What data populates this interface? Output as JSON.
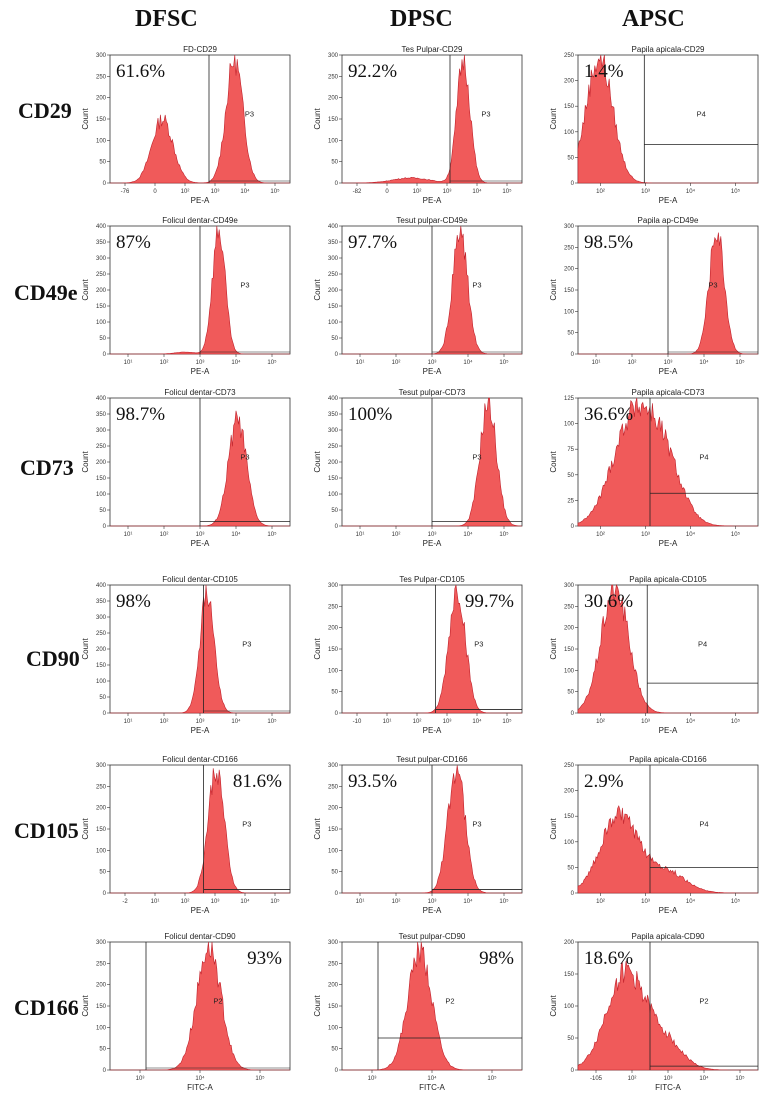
{
  "column_headers": [
    "DFSC",
    "DPSC",
    "APSC"
  ],
  "row_headers": [
    "CD29",
    "CD49e",
    "CD73",
    "CD90",
    "CD105",
    "CD166"
  ],
  "colors": {
    "histogram_fill": "#f05a5a",
    "histogram_stroke": "#c0202a",
    "axis": "#333333"
  },
  "chart_data": [
    {
      "type": "area",
      "title": "FD-CD29",
      "percentage": "61.6%",
      "gate_label": "P3",
      "gate_type": "vertical",
      "gate_x": 2.7,
      "xlabel": "PE-A",
      "ylabel": "Count",
      "ylim": [
        0,
        300
      ],
      "yticks": [
        0,
        50,
        100,
        150,
        200,
        250,
        300
      ],
      "xticks": [
        "-76",
        "0",
        "10²",
        "10³",
        "10⁴",
        "10⁵"
      ],
      "xlim": [
        -0.6,
        5.4
      ],
      "peaks": [
        {
          "mu": 1.15,
          "sigma": 0.35,
          "amp": 150
        },
        {
          "mu": 3.55,
          "sigma": 0.28,
          "amp": 290
        }
      ]
    },
    {
      "type": "area",
      "title": "Tes Pulpar-CD29",
      "percentage": "92.2%",
      "gate_label": "P3",
      "gate_type": "vertical",
      "gate_x": 3.0,
      "xlabel": "PE-A",
      "ylabel": "Count",
      "ylim": [
        0,
        300
      ],
      "yticks": [
        0,
        50,
        100,
        150,
        200,
        250,
        300
      ],
      "xticks": [
        "-82",
        "0",
        "10²",
        "10³",
        "10⁴",
        "10⁵"
      ],
      "xlim": [
        -0.6,
        5.4
      ],
      "peaks": [
        {
          "mu": 1.7,
          "sigma": 0.6,
          "amp": 12
        },
        {
          "mu": 3.45,
          "sigma": 0.22,
          "amp": 290
        }
      ]
    },
    {
      "type": "area",
      "title": "Papila apicala-CD29",
      "percentage": "1.4%",
      "gate_label": "P4",
      "gate_type": "corner",
      "gate_x": 3.0,
      "gate_y": 75,
      "xlabel": "PE-A",
      "ylabel": "Count",
      "ylim": [
        0,
        250
      ],
      "yticks": [
        0,
        50,
        100,
        150,
        200,
        250
      ],
      "xticks": [
        "10²",
        "10³",
        "10⁴",
        "10⁵"
      ],
      "xlim": [
        1.6,
        5.4
      ],
      "peaks": [
        {
          "mu": 2.05,
          "sigma": 0.28,
          "amp": 245
        }
      ]
    },
    {
      "type": "area",
      "title": "Folicul dentar-CD49e",
      "percentage": "87%",
      "gate_label": "P3",
      "gate_type": "vertical",
      "gate_x": 3.0,
      "xlabel": "PE-A",
      "ylabel": "Count",
      "ylim": [
        0,
        400
      ],
      "yticks": [
        0,
        50,
        100,
        150,
        200,
        250,
        300,
        350,
        400
      ],
      "xticks": [
        "10¹",
        "10²",
        "10³",
        "10⁴",
        "10⁵"
      ],
      "xlim": [
        0.6,
        5.4
      ],
      "peaks": [
        {
          "mu": 3.5,
          "sigma": 0.17,
          "amp": 390
        },
        {
          "mu": 2.6,
          "sigma": 0.25,
          "amp": 6
        }
      ]
    },
    {
      "type": "area",
      "title": "Tesut pulpar-CD49e",
      "percentage": "97.7%",
      "gate_label": "P3",
      "gate_type": "vertical",
      "gate_x": 3.0,
      "xlabel": "PE-A",
      "ylabel": "Count",
      "ylim": [
        0,
        400
      ],
      "yticks": [
        0,
        50,
        100,
        150,
        200,
        250,
        300,
        350,
        400
      ],
      "xticks": [
        "10¹",
        "10²",
        "10³",
        "10⁴",
        "10⁵"
      ],
      "xlim": [
        0.6,
        5.4
      ],
      "peaks": [
        {
          "mu": 3.75,
          "sigma": 0.2,
          "amp": 380
        }
      ]
    },
    {
      "type": "area",
      "title": "Papila ap-CD49e",
      "percentage": "98.5%",
      "gate_label": "P3",
      "gate_type": "vertical",
      "gate_x": 3.0,
      "xlabel": "PE-A",
      "ylabel": "Count",
      "ylim": [
        0,
        300
      ],
      "yticks": [
        0,
        50,
        100,
        150,
        200,
        250,
        300
      ],
      "xticks": [
        "10¹",
        "10²",
        "10³",
        "10⁴",
        "10⁵"
      ],
      "xlim": [
        0.6,
        5.4
      ],
      "peaks": [
        {
          "mu": 4.3,
          "sigma": 0.2,
          "amp": 290
        }
      ]
    },
    {
      "type": "area",
      "title": "Folicul dentar-CD73",
      "percentage": "98.7%",
      "gate_label": "P3",
      "gate_type": "corner",
      "gate_x": 3.0,
      "gate_y": 14,
      "xlabel": "PE-A",
      "ylabel": "Count",
      "ylim": [
        0,
        400
      ],
      "yticks": [
        0,
        50,
        100,
        150,
        200,
        250,
        300,
        350,
        400
      ],
      "xticks": [
        "10¹",
        "10²",
        "10³",
        "10⁴",
        "10⁵"
      ],
      "xlim": [
        0.6,
        5.4
      ],
      "peaks": [
        {
          "mu": 4.0,
          "sigma": 0.24,
          "amp": 330
        }
      ]
    },
    {
      "type": "area",
      "title": "Tesut pulpar-CD73",
      "percentage": "100%",
      "gate_label": "P3",
      "gate_type": "corner",
      "gate_x": 3.0,
      "gate_y": 14,
      "xlabel": "PE-A",
      "ylabel": "Count",
      "ylim": [
        0,
        400
      ],
      "yticks": [
        0,
        50,
        100,
        150,
        200,
        250,
        300,
        350,
        400
      ],
      "xticks": [
        "10¹",
        "10²",
        "10³",
        "10⁴",
        "10⁵"
      ],
      "xlim": [
        0.6,
        5.4
      ],
      "peaks": [
        {
          "mu": 4.5,
          "sigma": 0.22,
          "amp": 385
        }
      ]
    },
    {
      "type": "area",
      "title": "Papila apicala-CD73",
      "percentage": "36.6%",
      "gate_label": "P4",
      "gate_type": "corner",
      "gate_x": 3.0,
      "gate_y": 32,
      "xlabel": "PE-A",
      "ylabel": "Count",
      "ylim": [
        0,
        125
      ],
      "yticks": [
        0,
        25,
        50,
        75,
        100,
        125
      ],
      "xticks": [
        "10²",
        "10³",
        "10⁴",
        "10⁵"
      ],
      "xlim": [
        1.4,
        5.4
      ],
      "peaks": [
        {
          "mu": 2.6,
          "sigma": 0.45,
          "amp": 100
        },
        {
          "mu": 3.3,
          "sigma": 0.4,
          "amp": 60
        }
      ]
    },
    {
      "type": "area",
      "title": "Folicul dentar-CD105",
      "percentage": "98%",
      "gate_label": "P3",
      "gate_type": "vertical",
      "gate_x": 3.0,
      "xlabel": "PE-A",
      "ylabel": "Count",
      "ylim": [
        0,
        400
      ],
      "yticks": [
        0,
        50,
        100,
        150,
        200,
        250,
        300,
        350,
        400
      ],
      "xticks": [
        "10¹",
        "10²",
        "10³",
        "10⁴",
        "10⁵"
      ],
      "xlim": [
        0.4,
        5.4
      ],
      "peaks": [
        {
          "mu": 3.1,
          "sigma": 0.2,
          "amp": 380
        }
      ]
    },
    {
      "type": "area",
      "title": "Tes Pulpar-CD105",
      "percentage": "99.7%",
      "gate_label": "P3",
      "gate_type": "corner",
      "gate_x": 3.0,
      "gate_y": 8,
      "xlabel": "PE-A",
      "ylabel": "Count",
      "ylim": [
        0,
        300
      ],
      "yticks": [
        0,
        50,
        100,
        150,
        200,
        250,
        300
      ],
      "xticks": [
        "-10",
        "10¹",
        "10²",
        "10³",
        "10⁴",
        "10⁵"
      ],
      "xlim": [
        0.4,
        5.4
      ],
      "peaks": [
        {
          "mu": 3.6,
          "sigma": 0.23,
          "amp": 290
        }
      ]
    },
    {
      "type": "area",
      "title": "Papila apicala-CD105",
      "percentage": "30.6%",
      "gate_label": "P4",
      "gate_type": "corner",
      "gate_x": 3.0,
      "gate_y": 70,
      "xlabel": "PE-A",
      "ylabel": "Count",
      "ylim": [
        0,
        300
      ],
      "yticks": [
        0,
        50,
        100,
        150,
        200,
        250,
        300
      ],
      "xticks": [
        "10²",
        "10³",
        "10⁴",
        "10⁵"
      ],
      "xlim": [
        1.5,
        5.4
      ],
      "peaks": [
        {
          "mu": 2.3,
          "sigma": 0.3,
          "amp": 290
        }
      ]
    },
    {
      "type": "area",
      "title": "Folicul dentar-CD166",
      "percentage": "81.6%",
      "gate_label": "P3",
      "gate_type": "corner",
      "gate_x": 3.0,
      "gate_y": 8,
      "xlabel": "PE-A",
      "ylabel": "Count",
      "ylim": [
        0,
        300
      ],
      "yticks": [
        0,
        50,
        100,
        150,
        200,
        250,
        300
      ],
      "xticks": [
        "-2",
        "10¹",
        "10²",
        "10³",
        "10⁴",
        "10⁵"
      ],
      "xlim": [
        0.4,
        5.4
      ],
      "peaks": [
        {
          "mu": 3.35,
          "sigma": 0.22,
          "amp": 290
        }
      ]
    },
    {
      "type": "area",
      "title": "Tesut pulpar-CD166",
      "percentage": "93.5%",
      "gate_label": "P3",
      "gate_type": "corner",
      "gate_x": 3.0,
      "gate_y": 8,
      "xlabel": "PE-A",
      "ylabel": "Count",
      "ylim": [
        0,
        300
      ],
      "yticks": [
        0,
        50,
        100,
        150,
        200,
        250,
        300
      ],
      "xticks": [
        "10¹",
        "10²",
        "10³",
        "10⁴",
        "10⁵"
      ],
      "xlim": [
        0.6,
        5.4
      ],
      "peaks": [
        {
          "mu": 3.65,
          "sigma": 0.23,
          "amp": 290
        }
      ]
    },
    {
      "type": "area",
      "title": "Papila apicala-CD166",
      "percentage": "2.9%",
      "gate_label": "P4",
      "gate_type": "corner",
      "gate_x": 3.0,
      "gate_y": 50,
      "xlabel": "PE-A",
      "ylabel": "Count",
      "ylim": [
        0,
        250
      ],
      "yticks": [
        0,
        50,
        100,
        150,
        200,
        250
      ],
      "xticks": [
        "10²",
        "10³",
        "10⁴",
        "10⁵"
      ],
      "xlim": [
        1.4,
        5.4
      ],
      "peaks": [
        {
          "mu": 2.3,
          "sigma": 0.4,
          "amp": 150
        },
        {
          "mu": 3.3,
          "sigma": 0.45,
          "amp": 45
        }
      ]
    },
    {
      "type": "area",
      "title": "Folicul dentar-CD90",
      "percentage": "93%",
      "gate_label": "P2",
      "gate_type": "vertical",
      "gate_x": 3.0,
      "xlabel": "FITC-A",
      "ylabel": "Count",
      "ylim": [
        0,
        300
      ],
      "yticks": [
        0,
        50,
        100,
        150,
        200,
        250,
        300
      ],
      "xticks": [
        "10³",
        "10⁴",
        "10⁵"
      ],
      "xlim": [
        2.4,
        5.4
      ],
      "peaks": [
        {
          "mu": 4.05,
          "sigma": 0.2,
          "amp": 290
        }
      ]
    },
    {
      "type": "area",
      "title": "Tesut pulpar-CD90",
      "percentage": "98%",
      "gate_label": "P2",
      "gate_type": "corner",
      "gate_x": 3.0,
      "gate_y": 75,
      "xlabel": "FITC-A",
      "ylabel": "Count",
      "ylim": [
        0,
        300
      ],
      "yticks": [
        0,
        50,
        100,
        150,
        200,
        250,
        300
      ],
      "xticks": [
        "10³",
        "10⁴",
        "10⁵"
      ],
      "xlim": [
        2.4,
        5.4
      ],
      "peaks": [
        {
          "mu": 3.7,
          "sigma": 0.2,
          "amp": 280
        }
      ]
    },
    {
      "type": "area",
      "title": "Papila apicala-CD90",
      "percentage": "18.6%",
      "gate_label": "P2",
      "gate_type": "corner",
      "gate_x": 3.0,
      "gate_y": 6,
      "xlabel": "FITC-A",
      "ylabel": "Count",
      "ylim": [
        0,
        200
      ],
      "yticks": [
        0,
        50,
        100,
        150,
        200
      ],
      "xticks": [
        "-105",
        "10²",
        "10³",
        "10⁴",
        "10⁵"
      ],
      "xlim": [
        1.4,
        5.4
      ],
      "peaks": [
        {
          "mu": 2.45,
          "sigma": 0.42,
          "amp": 150
        },
        {
          "mu": 3.3,
          "sigma": 0.4,
          "amp": 45
        }
      ]
    }
  ]
}
